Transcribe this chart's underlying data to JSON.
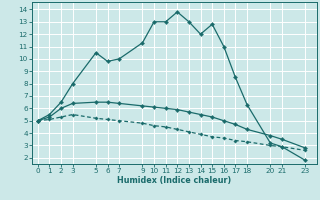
{
  "xlabel": "Humidex (Indice chaleur)",
  "bg_color": "#cce8e8",
  "grid_color": "#ffffff",
  "line_color": "#1a6b6b",
  "xlim": [
    -0.5,
    24.0
  ],
  "ylim": [
    1.5,
    14.6
  ],
  "xticks": [
    0,
    1,
    2,
    3,
    5,
    6,
    7,
    9,
    10,
    11,
    12,
    13,
    14,
    15,
    16,
    17,
    18,
    20,
    21,
    23
  ],
  "yticks": [
    2,
    3,
    4,
    5,
    6,
    7,
    8,
    9,
    10,
    11,
    12,
    13,
    14
  ],
  "line1_x": [
    0,
    1,
    2,
    3,
    5,
    6,
    7,
    9,
    10,
    11,
    12,
    13,
    14,
    15,
    16,
    17,
    18,
    20,
    21,
    23
  ],
  "line1_y": [
    5.0,
    5.5,
    6.5,
    8.0,
    10.5,
    9.8,
    10.0,
    11.3,
    13.0,
    13.0,
    13.8,
    13.0,
    12.0,
    12.8,
    11.0,
    8.5,
    6.3,
    3.2,
    2.9,
    1.8
  ],
  "line2_x": [
    0,
    1,
    2,
    3,
    5,
    6,
    7,
    9,
    10,
    11,
    12,
    13,
    14,
    15,
    16,
    17,
    18,
    20,
    21,
    23
  ],
  "line2_y": [
    5.0,
    5.3,
    6.0,
    6.4,
    6.5,
    6.5,
    6.4,
    6.2,
    6.1,
    6.0,
    5.9,
    5.7,
    5.5,
    5.3,
    5.0,
    4.7,
    4.3,
    3.8,
    3.5,
    2.8
  ],
  "line3_x": [
    0,
    1,
    2,
    3,
    5,
    6,
    7,
    9,
    10,
    11,
    12,
    13,
    14,
    15,
    16,
    17,
    18,
    20,
    21,
    23
  ],
  "line3_y": [
    5.0,
    5.1,
    5.3,
    5.5,
    5.2,
    5.1,
    5.0,
    4.8,
    4.6,
    4.5,
    4.3,
    4.1,
    3.9,
    3.7,
    3.6,
    3.4,
    3.3,
    3.0,
    2.9,
    2.6
  ]
}
